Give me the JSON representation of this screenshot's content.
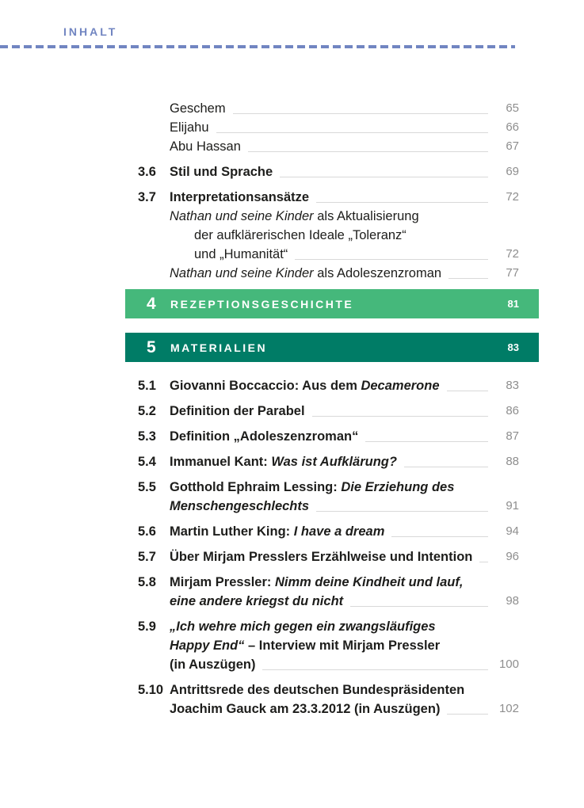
{
  "header": {
    "title": "INHALT"
  },
  "colors": {
    "accent_blue": "#7185c1",
    "leader_gray": "#d9d9d9",
    "page_number_gray": "#8e8e8e",
    "text_dark": "#1d1d1b",
    "section4_green": "#45b87b",
    "section5_teal": "#007c66",
    "bar_text_white": "#ffffff"
  },
  "toc": {
    "items": [
      {
        "type": "entry",
        "number": "",
        "lines": [
          {
            "segments": [
              {
                "text": "Geschem",
                "style": ""
              }
            ],
            "page": "65"
          }
        ]
      },
      {
        "type": "entry",
        "number": "",
        "lines": [
          {
            "segments": [
              {
                "text": "Elijahu",
                "style": ""
              }
            ],
            "page": "66"
          }
        ]
      },
      {
        "type": "entry",
        "number": "",
        "lines": [
          {
            "segments": [
              {
                "text": "Abu Hassan",
                "style": ""
              }
            ],
            "page": "67"
          }
        ]
      },
      {
        "type": "entry",
        "number": "3.6",
        "lines": [
          {
            "segments": [
              {
                "text": "Stil und Sprache",
                "style": "b"
              }
            ],
            "page": "69"
          }
        ]
      },
      {
        "type": "entry",
        "number": "3.7",
        "lines": [
          {
            "segments": [
              {
                "text": "Interpretationsansätze",
                "style": "b"
              }
            ],
            "page": "72"
          },
          {
            "segments": [
              {
                "text": "Nathan und seine Kinder",
                "style": "i"
              },
              {
                "text": " als Aktualisierung",
                "style": ""
              }
            ]
          },
          {
            "indent": 1,
            "segments": [
              {
                "text": "der aufklärerischen Ideale „Toleranz“",
                "style": ""
              }
            ]
          },
          {
            "indent": 1,
            "segments": [
              {
                "text": "und „Humanität“",
                "style": ""
              }
            ],
            "page": "72"
          },
          {
            "segments": [
              {
                "text": "Nathan und seine Kinder",
                "style": "i"
              },
              {
                "text": " als Adoleszenzroman",
                "style": ""
              }
            ],
            "page": "77"
          }
        ]
      },
      {
        "type": "section",
        "number": "4",
        "title": "REZEPTIONSGESCHICHTE",
        "page": "81",
        "bg": "#45b87b"
      },
      {
        "type": "section",
        "number": "5",
        "title": "MATERIALIEN",
        "page": "83",
        "bg": "#007c66"
      },
      {
        "type": "entry",
        "number": "5.1",
        "lines": [
          {
            "segments": [
              {
                "text": "Giovanni Boccaccio: Aus dem ",
                "style": "b"
              },
              {
                "text": "Decamerone",
                "style": "bi"
              }
            ],
            "page": "83"
          }
        ]
      },
      {
        "type": "entry",
        "number": "5.2",
        "lines": [
          {
            "segments": [
              {
                "text": "Definition der Parabel",
                "style": "b"
              }
            ],
            "page": "86"
          }
        ]
      },
      {
        "type": "entry",
        "number": "5.3",
        "lines": [
          {
            "segments": [
              {
                "text": "Definition „Adoleszenzroman“",
                "style": "b"
              }
            ],
            "page": "87"
          }
        ]
      },
      {
        "type": "entry",
        "number": "5.4",
        "lines": [
          {
            "segments": [
              {
                "text": "Immanuel Kant: ",
                "style": "b"
              },
              {
                "text": "Was ist Aufklärung?",
                "style": "bi"
              }
            ],
            "page": "88"
          }
        ]
      },
      {
        "type": "entry",
        "number": "5.5",
        "lines": [
          {
            "segments": [
              {
                "text": "Gotthold Ephraim Lessing: ",
                "style": "b"
              },
              {
                "text": "Die Erziehung des",
                "style": "bi"
              }
            ]
          },
          {
            "segments": [
              {
                "text": "Menschengeschlechts",
                "style": "bi"
              }
            ],
            "page": "91"
          }
        ]
      },
      {
        "type": "entry",
        "number": "5.6",
        "lines": [
          {
            "segments": [
              {
                "text": "Martin Luther King: ",
                "style": "b"
              },
              {
                "text": "I have a dream",
                "style": "bi"
              }
            ],
            "page": "94"
          }
        ]
      },
      {
        "type": "entry",
        "number": "5.7",
        "lines": [
          {
            "segments": [
              {
                "text": "Über Mirjam Presslers Erzählweise und Intention",
                "style": "b"
              }
            ],
            "page": "96"
          }
        ]
      },
      {
        "type": "entry",
        "number": "5.8",
        "lines": [
          {
            "segments": [
              {
                "text": "Mirjam Pressler: ",
                "style": "b"
              },
              {
                "text": "Nimm deine Kindheit und lauf,",
                "style": "bi"
              }
            ]
          },
          {
            "segments": [
              {
                "text": "eine andere kriegst du nicht",
                "style": "bi"
              }
            ],
            "page": "98"
          }
        ]
      },
      {
        "type": "entry",
        "number": "5.9",
        "lines": [
          {
            "segments": [
              {
                "text": "„Ich wehre mich gegen ein zwangsläufiges",
                "style": "bi"
              }
            ]
          },
          {
            "segments": [
              {
                "text": "Happy End“",
                "style": "bi"
              },
              {
                "text": " – Interview mit Mirjam Pressler",
                "style": "b"
              }
            ]
          },
          {
            "segments": [
              {
                "text": "(in Auszügen)",
                "style": "b"
              }
            ],
            "page": "100"
          }
        ]
      },
      {
        "type": "entry",
        "number": "5.10",
        "lines": [
          {
            "segments": [
              {
                "text": "Antrittsrede des deutschen Bundespräsidenten",
                "style": "b"
              }
            ]
          },
          {
            "segments": [
              {
                "text": "Joachim Gauck am 23.3.2012 (in Auszügen)",
                "style": "b"
              }
            ],
            "page": "102"
          }
        ]
      }
    ]
  }
}
